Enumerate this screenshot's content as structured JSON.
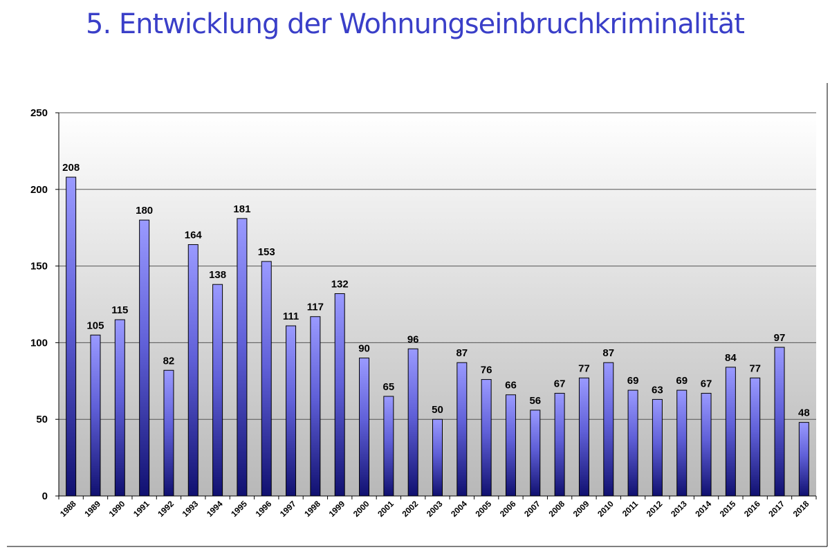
{
  "header": {
    "title": "5. Entwicklung der Wohnungseinbruchkriminalität"
  },
  "chart_data": {
    "type": "bar",
    "title": "5. Entwicklung der Wohnungseinbruchkriminalität",
    "xlabel": "",
    "ylabel": "",
    "ylim": [
      0,
      250
    ],
    "yticks": [
      0,
      50,
      100,
      150,
      200,
      250
    ],
    "grid": true,
    "legend": "none",
    "categories": [
      "1988",
      "1989",
      "1990",
      "1991",
      "1992",
      "1993",
      "1994",
      "1995",
      "1996",
      "1997",
      "1998",
      "1999",
      "2000",
      "2001",
      "2002",
      "2003",
      "2004",
      "2005",
      "2006",
      "2007",
      "2008",
      "2009",
      "2010",
      "2011",
      "2012",
      "2013",
      "2014",
      "2015",
      "2016",
      "2017",
      "2018"
    ],
    "values": [
      208,
      105,
      115,
      180,
      82,
      164,
      138,
      181,
      153,
      111,
      117,
      132,
      90,
      65,
      96,
      50,
      87,
      76,
      66,
      56,
      67,
      77,
      87,
      69,
      63,
      69,
      67,
      84,
      77,
      97,
      48
    ],
    "colors": {
      "bar_top": "#9a9aff",
      "bar_bottom": "#101070",
      "title": "#3a3fc8"
    }
  }
}
